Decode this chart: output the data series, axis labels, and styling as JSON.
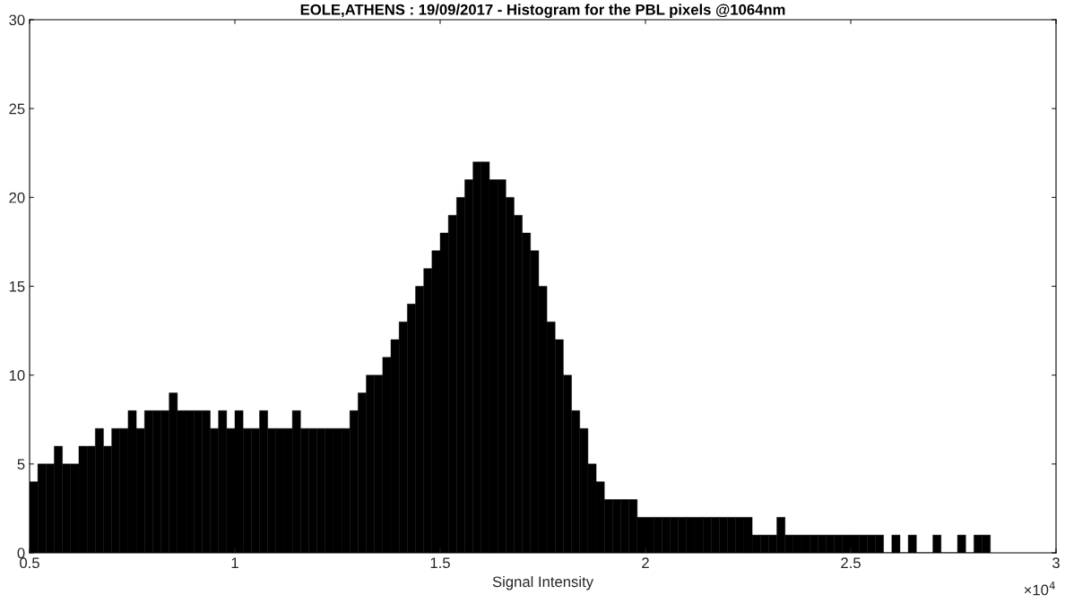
{
  "chart_data": {
    "type": "histogram",
    "title": "EOLE,ATHENS : 19/09/2017 - Histogram for the PBL pixels @1064nm",
    "xlabel": "Signal Intensity",
    "bins": [
      0.5,
      0.52,
      0.54,
      0.56,
      0.58,
      0.6,
      0.62,
      0.64,
      0.66,
      0.68,
      0.7,
      0.72,
      0.74,
      0.76,
      0.78,
      0.8,
      0.82,
      0.84,
      0.86,
      0.88,
      0.9,
      0.92,
      0.94,
      0.96,
      0.98,
      1.0,
      1.02,
      1.04,
      1.06,
      1.08,
      1.1,
      1.12,
      1.14,
      1.16,
      1.18,
      1.2,
      1.22,
      1.24,
      1.26,
      1.28,
      1.3,
      1.32,
      1.34,
      1.36,
      1.38,
      1.4,
      1.42,
      1.44,
      1.46,
      1.48,
      1.5,
      1.52,
      1.54,
      1.56,
      1.58,
      1.6,
      1.62,
      1.64,
      1.66,
      1.68,
      1.7,
      1.72,
      1.74,
      1.76,
      1.78,
      1.8,
      1.82,
      1.84,
      1.86,
      1.88,
      1.9,
      1.92,
      1.94,
      1.96,
      1.98,
      2.0,
      2.02,
      2.04,
      2.06,
      2.08,
      2.1,
      2.12,
      2.14,
      2.16,
      2.18,
      2.2,
      2.22,
      2.24,
      2.26,
      2.28,
      2.3,
      2.32,
      2.34,
      2.36,
      2.38,
      2.4,
      2.42,
      2.44,
      2.46,
      2.48,
      2.5,
      2.52,
      2.54,
      2.56,
      2.58,
      2.6,
      2.62,
      2.64,
      2.66,
      2.68,
      2.7,
      2.72,
      2.74,
      2.76,
      2.78,
      2.8,
      2.82,
      2.84
    ],
    "values": [
      4,
      5,
      5,
      6,
      5,
      5,
      6,
      6,
      7,
      6,
      7,
      7,
      8,
      7,
      8,
      8,
      8,
      9,
      8,
      8,
      8,
      8,
      7,
      8,
      7,
      8,
      7,
      7,
      8,
      7,
      7,
      7,
      8,
      7,
      7,
      7,
      7,
      7,
      7,
      8,
      9,
      10,
      10,
      11,
      12,
      13,
      14,
      15,
      16,
      17,
      18,
      19,
      20,
      21,
      22,
      22,
      21,
      21,
      20,
      19,
      18,
      17,
      15,
      13,
      12,
      10,
      8,
      7,
      5,
      4,
      3,
      3,
      3,
      3,
      2,
      2,
      2,
      2,
      2,
      2,
      2,
      2,
      2,
      2,
      2,
      2,
      2,
      2,
      1,
      1,
      1,
      2,
      1,
      1,
      1,
      1,
      1,
      1,
      1,
      1,
      1,
      1,
      1,
      1,
      0,
      1,
      0,
      1,
      0,
      0,
      1,
      0,
      0,
      1,
      0,
      1,
      1
    ],
    "color": "#000000",
    "xlim": [
      0.5,
      3
    ],
    "xticks": [
      0.5,
      1,
      1.5,
      2,
      2.5,
      3
    ],
    "ylim": [
      0,
      30
    ],
    "yticks": [
      0,
      5,
      10,
      15,
      20,
      25,
      30
    ],
    "annotations": [
      "×10$^{4}$"
    ]
  }
}
